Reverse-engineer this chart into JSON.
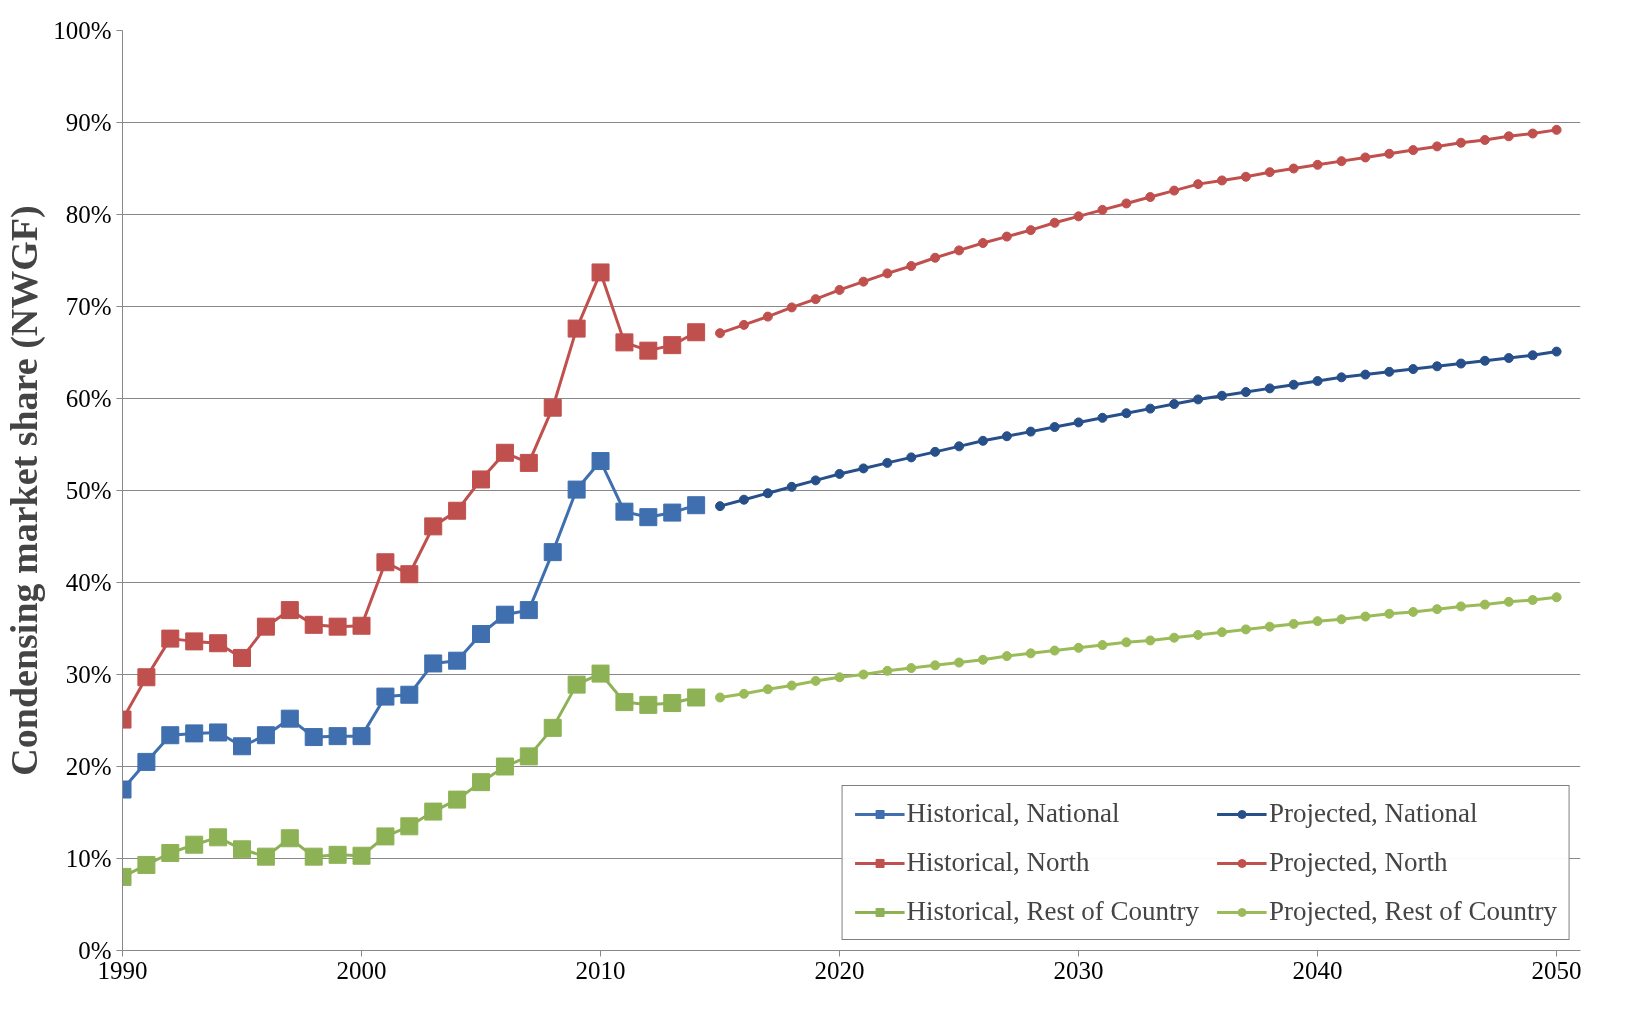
{
  "chart_data": {
    "type": "line",
    "ylabel": "Condensing market share (NWGF)",
    "xlim": [
      1990,
      2051
    ],
    "xticks": [
      1990,
      2000,
      2010,
      2020,
      2030,
      2040,
      2050
    ],
    "ylim": [
      0,
      100
    ],
    "yticks": [
      {
        "value": 0,
        "label": "0%"
      },
      {
        "value": 10,
        "label": "10%"
      },
      {
        "value": 20,
        "label": "20%"
      },
      {
        "value": 30,
        "label": "30%"
      },
      {
        "value": 40,
        "label": "40%"
      },
      {
        "value": 50,
        "label": "50%"
      },
      {
        "value": 60,
        "label": "60%"
      },
      {
        "value": 70,
        "label": "70%"
      },
      {
        "value": 80,
        "label": "80%"
      },
      {
        "value": 90,
        "label": "90%"
      },
      {
        "value": 100,
        "label": "100%"
      }
    ],
    "grid": "y",
    "legend": "bottom right",
    "line_style": "solid",
    "series": [
      {
        "name": "Historical, National",
        "color": "#3f6fae",
        "marker": "square",
        "x": [
          1990,
          1991,
          1992,
          1993,
          1994,
          1995,
          1996,
          1997,
          1998,
          1999,
          2000,
          2001,
          2002,
          2003,
          2004,
          2005,
          2006,
          2007,
          2008,
          2009,
          2010,
          2011,
          2012,
          2013,
          2014
        ],
        "values": [
          17.5,
          20.5,
          23.4,
          23.6,
          23.7,
          22.2,
          23.4,
          25.2,
          23.2,
          23.3,
          23.3,
          27.6,
          27.8,
          31.2,
          31.5,
          34.4,
          36.5,
          37.0,
          43.3,
          50.1,
          53.2,
          47.7,
          47.1,
          47.6,
          48.4
        ]
      },
      {
        "name": "Projected, National",
        "color": "#27508a",
        "marker": "circle",
        "x": [
          2015,
          2016,
          2017,
          2018,
          2019,
          2020,
          2021,
          2022,
          2023,
          2024,
          2025,
          2026,
          2027,
          2028,
          2029,
          2030,
          2031,
          2032,
          2033,
          2034,
          2035,
          2036,
          2037,
          2038,
          2039,
          2040,
          2041,
          2042,
          2043,
          2044,
          2045,
          2046,
          2047,
          2048,
          2049,
          2050
        ],
        "values": [
          48.3,
          49.0,
          49.7,
          50.4,
          51.1,
          51.8,
          52.4,
          53.0,
          53.6,
          54.2,
          54.8,
          55.4,
          55.9,
          56.4,
          56.9,
          57.4,
          57.9,
          58.4,
          58.9,
          59.4,
          59.9,
          60.3,
          60.7,
          61.1,
          61.5,
          61.9,
          62.3,
          62.6,
          62.9,
          63.2,
          63.5,
          63.8,
          64.1,
          64.4,
          64.7,
          65.1
        ]
      },
      {
        "name": "Historical, North",
        "color": "#c0504d",
        "marker": "square",
        "x": [
          1990,
          1991,
          1992,
          1993,
          1994,
          1995,
          1996,
          1997,
          1998,
          1999,
          2000,
          2001,
          2002,
          2003,
          2004,
          2005,
          2006,
          2007,
          2008,
          2009,
          2010,
          2011,
          2012,
          2013,
          2014
        ],
        "values": [
          25.1,
          29.7,
          33.9,
          33.6,
          33.4,
          31.8,
          35.2,
          37.0,
          35.4,
          35.2,
          35.3,
          42.2,
          40.9,
          46.1,
          47.8,
          51.2,
          54.1,
          53.0,
          59.0,
          67.6,
          73.7,
          66.1,
          65.2,
          65.8,
          67.2
        ]
      },
      {
        "name": "Projected, North",
        "color": "#c0504d",
        "marker": "circle",
        "x": [
          2015,
          2016,
          2017,
          2018,
          2019,
          2020,
          2021,
          2022,
          2023,
          2024,
          2025,
          2026,
          2027,
          2028,
          2029,
          2030,
          2031,
          2032,
          2033,
          2034,
          2035,
          2036,
          2037,
          2038,
          2039,
          2040,
          2041,
          2042,
          2043,
          2044,
          2045,
          2046,
          2047,
          2048,
          2049,
          2050
        ],
        "values": [
          67.1,
          68.0,
          68.9,
          69.9,
          70.8,
          71.8,
          72.7,
          73.6,
          74.4,
          75.3,
          76.1,
          76.9,
          77.6,
          78.3,
          79.1,
          79.8,
          80.5,
          81.2,
          81.9,
          82.6,
          83.3,
          83.7,
          84.1,
          84.6,
          85.0,
          85.4,
          85.8,
          86.2,
          86.6,
          87.0,
          87.4,
          87.8,
          88.1,
          88.5,
          88.8,
          89.2
        ]
      },
      {
        "name": "Historical, Rest of Country",
        "color": "#8db255",
        "marker": "square",
        "x": [
          1990,
          1991,
          1992,
          1993,
          1994,
          1995,
          1996,
          1997,
          1998,
          1999,
          2000,
          2001,
          2002,
          2003,
          2004,
          2005,
          2006,
          2007,
          2008,
          2009,
          2010,
          2011,
          2012,
          2013,
          2014
        ],
        "values": [
          8.0,
          9.3,
          10.6,
          11.5,
          12.3,
          11.0,
          10.2,
          12.2,
          10.2,
          10.4,
          10.3,
          12.4,
          13.5,
          15.1,
          16.4,
          18.3,
          20.0,
          21.1,
          24.2,
          28.9,
          30.1,
          27.0,
          26.7,
          26.9,
          27.5
        ]
      },
      {
        "name": "Projected, Rest of Country",
        "color": "#9bbb59",
        "marker": "circle",
        "x": [
          2015,
          2016,
          2017,
          2018,
          2019,
          2020,
          2021,
          2022,
          2023,
          2024,
          2025,
          2026,
          2027,
          2028,
          2029,
          2030,
          2031,
          2032,
          2033,
          2034,
          2035,
          2036,
          2037,
          2038,
          2039,
          2040,
          2041,
          2042,
          2043,
          2044,
          2045,
          2046,
          2047,
          2048,
          2049,
          2050
        ],
        "values": [
          27.5,
          27.9,
          28.4,
          28.8,
          29.3,
          29.7,
          30.0,
          30.4,
          30.7,
          31.0,
          31.3,
          31.6,
          32.0,
          32.3,
          32.6,
          32.9,
          33.2,
          33.5,
          33.7,
          34.0,
          34.3,
          34.6,
          34.9,
          35.2,
          35.5,
          35.8,
          36.0,
          36.3,
          36.6,
          36.8,
          37.1,
          37.4,
          37.6,
          37.9,
          38.1,
          38.4
        ]
      }
    ]
  }
}
